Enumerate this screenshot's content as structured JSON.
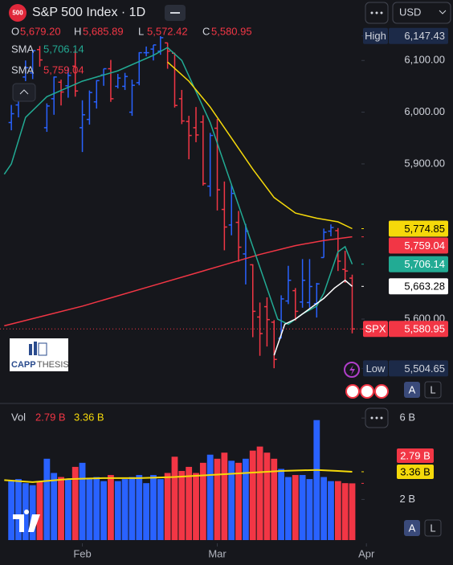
{
  "header": {
    "logo": "500",
    "currency": "USD",
    "watermark": [
      "CAPP",
      "THESIS"
    ],
    "buttons": [
      "A",
      "L",
      "A",
      "L"
    ]
  },
  "chart_data": {
    "type": "ohlc",
    "title": "S&P 500 Index · 1D",
    "up_color": "#2962ff",
    "down_color": "#f23645",
    "readout": [
      {
        "key": "O",
        "value": 5679.2,
        "label": "5,679.20"
      },
      {
        "key": "H",
        "value": 5685.89,
        "label": "5,685.89"
      },
      {
        "key": "L",
        "value": 5572.42,
        "label": "5,572.42"
      },
      {
        "key": "C",
        "value": 5580.95,
        "label": "5,580.95"
      }
    ],
    "legend": [
      {
        "name": "SMA",
        "value": 5706.14,
        "label": "5,706.14",
        "color": "#22ab94"
      },
      {
        "name": "SMA",
        "value": 5759.04,
        "label": "5,759.04",
        "color": "#f23645"
      }
    ],
    "xlim": [
      -1.6,
      49.3
    ],
    "xticks": [
      {
        "value": 10,
        "label": "Feb"
      },
      {
        "value": 29,
        "label": "Mar"
      },
      {
        "value": 50,
        "label": "Apr"
      }
    ],
    "ylim": [
      5440,
      6216.9
    ],
    "yticks": [
      {
        "value": 6100,
        "label": "6,100.00"
      },
      {
        "value": 6000,
        "label": "6,000.00"
      },
      {
        "value": 5900,
        "label": "5,900.00"
      },
      {
        "value": 5600,
        "label": "5,600.00"
      }
    ],
    "ohlc": [
      [
        5980,
        6014,
        5965,
        5997
      ],
      [
        6014,
        6051,
        5990,
        6049
      ],
      [
        6068,
        6100,
        6060,
        6086
      ],
      [
        6076,
        6119,
        6064,
        6119
      ],
      [
        6121,
        6128,
        6088,
        6101
      ],
      [
        5970,
        6017,
        5962,
        6012
      ],
      [
        6026,
        6069,
        5995,
        6068
      ],
      [
        6058,
        6063,
        6013,
        6039
      ],
      [
        6051,
        6086,
        6028,
        6071
      ],
      [
        6089,
        6121,
        6030,
        6041
      ],
      [
        5970,
        6023,
        5923,
        5995
      ],
      [
        5986,
        6042,
        5976,
        6038
      ],
      [
        6020,
        6062,
        6007,
        6061
      ],
      [
        6072,
        6084,
        6051,
        6084
      ],
      [
        6084,
        6101,
        6020,
        6026
      ],
      [
        6050,
        6074,
        6046,
        6066
      ],
      [
        6050,
        6076,
        6043,
        6069
      ],
      [
        6000,
        6063,
        5993,
        6052
      ],
      [
        6057,
        6116,
        6052,
        6115
      ],
      [
        6115,
        6127,
        6108,
        6115
      ],
      [
        6122,
        6130,
        6100,
        6130
      ],
      [
        6118,
        6147,
        6111,
        6144
      ],
      [
        6134,
        6134,
        6084,
        6118
      ],
      [
        6114,
        6115,
        6009,
        6013
      ],
      [
        6026,
        6043,
        5977,
        5983
      ],
      [
        5982,
        5993,
        5909,
        5955
      ],
      [
        5970,
        6010,
        5942,
        5956
      ],
      [
        5981,
        5994,
        5858,
        5862
      ],
      [
        5857,
        5960,
        5837,
        5955
      ],
      [
        5969,
        5987,
        5810,
        5850
      ],
      [
        5812,
        5866,
        5733,
        5778
      ],
      [
        5782,
        5861,
        5762,
        5843
      ],
      [
        5787,
        5809,
        5711,
        5739
      ],
      [
        5726,
        5784,
        5667,
        5770
      ],
      [
        5705,
        5706,
        5565,
        5615
      ],
      [
        5604,
        5632,
        5529,
        5572
      ],
      [
        5624,
        5642,
        5547,
        5599
      ],
      [
        5594,
        5598,
        5505,
        5522
      ],
      [
        5563,
        5646,
        5563,
        5639
      ],
      [
        5635,
        5703,
        5629,
        5675
      ],
      [
        5655,
        5660,
        5597,
        5615
      ],
      [
        5633,
        5716,
        5622,
        5675
      ],
      [
        5632,
        5716,
        5622,
        5663
      ],
      [
        5630,
        5670,
        5603,
        5668
      ],
      [
        5719,
        5775,
        5719,
        5768
      ],
      [
        5770,
        5783,
        5760,
        5777
      ],
      [
        5771,
        5776,
        5693,
        5712
      ],
      [
        5696,
        5732,
        5670,
        5693
      ],
      [
        5679.2,
        5685.89,
        5572.42,
        5580.95
      ]
    ],
    "lines": [
      {
        "name": "SMA",
        "color": "#f23645",
        "x": [
          -1,
          10,
          20,
          30,
          35,
          40,
          44,
          48
        ],
        "values": [
          5587,
          5625,
          5665,
          5705,
          5725,
          5742,
          5752,
          5759.04
        ]
      },
      {
        "name": "SMA",
        "color": "#22ab94",
        "x": [
          -1,
          0,
          2,
          5,
          10,
          15,
          20,
          22,
          24,
          26,
          28,
          30,
          32,
          34,
          36,
          37.5,
          39,
          41,
          43,
          44,
          45,
          46,
          47,
          48
        ],
        "values": [
          5880,
          5900,
          5990,
          6030,
          6060,
          6080,
          6110,
          6125,
          6100,
          6040,
          5980,
          5900,
          5820,
          5740,
          5660,
          5600,
          5590,
          5610,
          5625,
          5650,
          5690,
          5730,
          5740,
          5706.14
        ]
      },
      {
        "color": "#f5d90a",
        "x": [
          22,
          25,
          28,
          31,
          34,
          37,
          40,
          43,
          46,
          48
        ],
        "values": [
          6097,
          6060,
          6010,
          5950,
          5890,
          5835,
          5805,
          5795,
          5788,
          5774.85
        ]
      },
      {
        "color": "#ffffff",
        "x": [
          37,
          38.5,
          40,
          42,
          44,
          45.5,
          47,
          48
        ],
        "values": [
          5530,
          5590,
          5600,
          5620,
          5640,
          5660,
          5675,
          5663.28
        ]
      }
    ],
    "badges": [
      {
        "tag": "High",
        "value": 6147.43,
        "label": "6,147.43",
        "bg": "#1c2a48",
        "fg": "#d1d4dc"
      },
      {
        "value": 5774.85,
        "label": "5,774.85",
        "bg": "#f5d90a",
        "fg": "#000000"
      },
      {
        "value": 5759.04,
        "label": "5,759.04",
        "bg": "#f23645",
        "fg": "#ffffff"
      },
      {
        "value": 5706.14,
        "label": "5,706.14",
        "bg": "#22ab94",
        "fg": "#ffffff"
      },
      {
        "value": 5663.28,
        "label": "5,663.28",
        "bg": "#ffffff",
        "fg": "#000000"
      },
      {
        "tag": "SPX",
        "value": 5580.95,
        "label": "5,580.95",
        "bg": "#f23645",
        "fg": "#ffffff",
        "dotted": true
      },
      {
        "tag": "Low",
        "value": 5504.65,
        "label": "5,504.65",
        "bg": "#1c2a48",
        "fg": "#d1d4dc"
      }
    ],
    "volume": {
      "title": "Vol",
      "ylim": [
        0,
        6.6
      ],
      "yticks": [
        {
          "value": 6,
          "label": "6 B"
        },
        {
          "value": 2,
          "label": "2 B"
        }
      ],
      "values": [
        2.9,
        3.0,
        2.8,
        2.7,
        2.9,
        4.0,
        3.3,
        3.1,
        3.0,
        3.6,
        3.8,
        3.0,
        3.1,
        2.9,
        3.2,
        2.9,
        3.0,
        3.1,
        3.2,
        2.8,
        3.2,
        3.0,
        3.3,
        4.1,
        3.4,
        3.6,
        3.3,
        3.8,
        4.2,
        4.0,
        4.3,
        3.9,
        3.8,
        4.0,
        4.4,
        4.6,
        4.3,
        4.0,
        3.5,
        3.1,
        3.2,
        3.2,
        3.0,
        5.9,
        3.1,
        2.9,
        2.9,
        2.8,
        2.79
      ],
      "ma": {
        "color": "#f5d90a",
        "x": [
          -1,
          3,
          8,
          13,
          18,
          23,
          28,
          33,
          38,
          43,
          46,
          48
        ],
        "values": [
          2.95,
          2.85,
          3.0,
          3.05,
          3.05,
          3.1,
          3.2,
          3.3,
          3.4,
          3.45,
          3.4,
          3.36
        ]
      },
      "readouts": [
        {
          "value": 2.79,
          "label": "2.79 B",
          "bg": "#f23645",
          "fg": "#ffffff",
          "color": "#f23645"
        },
        {
          "value": 3.36,
          "label": "3.36 B",
          "bg": "#f5d90a",
          "fg": "#000000",
          "color": "#f5d90a"
        }
      ]
    }
  }
}
